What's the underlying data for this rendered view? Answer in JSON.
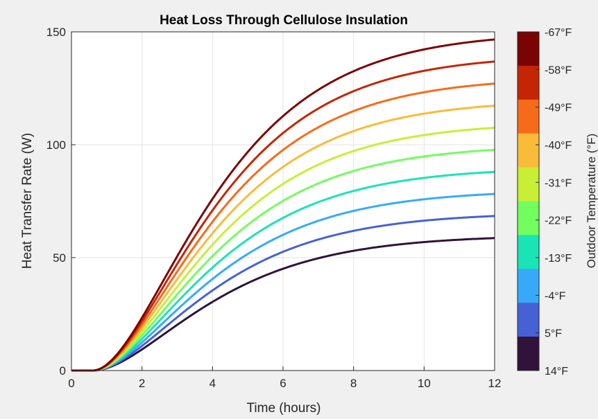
{
  "chart_data": {
    "type": "line",
    "title": "Heat Loss Through Cellulose Insulation",
    "xlabel": "Time (hours)",
    "ylabel": "Heat Transfer Rate (W)",
    "xlim": [
      0,
      12
    ],
    "ylim": [
      0,
      150
    ],
    "xticks": [
      "0",
      "2",
      "4",
      "6",
      "8",
      "10",
      "12"
    ],
    "yticks": [
      "0",
      "50",
      "100",
      "150"
    ],
    "grid": true,
    "model": {
      "onset_hours": 0.6,
      "time_constant_hours": 2.0
    },
    "colorbar": {
      "label": "Outdoor Temperature (°F)",
      "tick_labels": [
        "-67°F",
        "-58°F",
        "-49°F",
        "-40°F",
        "-31°F",
        "-22°F",
        "-13°F",
        "-4°F",
        "5°F",
        "14°F"
      ],
      "colors": [
        "#7a0403",
        "#c42503",
        "#f66b19",
        "#fabb38",
        "#c8ef34",
        "#72fe5e",
        "#1ae4b6",
        "#36aaf9",
        "#4661d6",
        "#30123b"
      ]
    },
    "series": [
      {
        "name": "14°F",
        "steady_state_W": 60,
        "color": "#30123b"
      },
      {
        "name": "5°F",
        "steady_state_W": 70,
        "color": "#4661d6"
      },
      {
        "name": "-4°F",
        "steady_state_W": 80,
        "color": "#36aaf9"
      },
      {
        "name": "-13°F",
        "steady_state_W": 90,
        "color": "#1ae4b6"
      },
      {
        "name": "-22°F",
        "steady_state_W": 100,
        "color": "#72fe5e"
      },
      {
        "name": "-31°F",
        "steady_state_W": 110,
        "color": "#c8ef34"
      },
      {
        "name": "-40°F",
        "steady_state_W": 120,
        "color": "#fabb38"
      },
      {
        "name": "-49°F",
        "steady_state_W": 130,
        "color": "#f66b19"
      },
      {
        "name": "-58°F",
        "steady_state_W": 140,
        "color": "#c42503"
      },
      {
        "name": "-67°F",
        "steady_state_W": 150,
        "color": "#7a0403"
      }
    ]
  }
}
